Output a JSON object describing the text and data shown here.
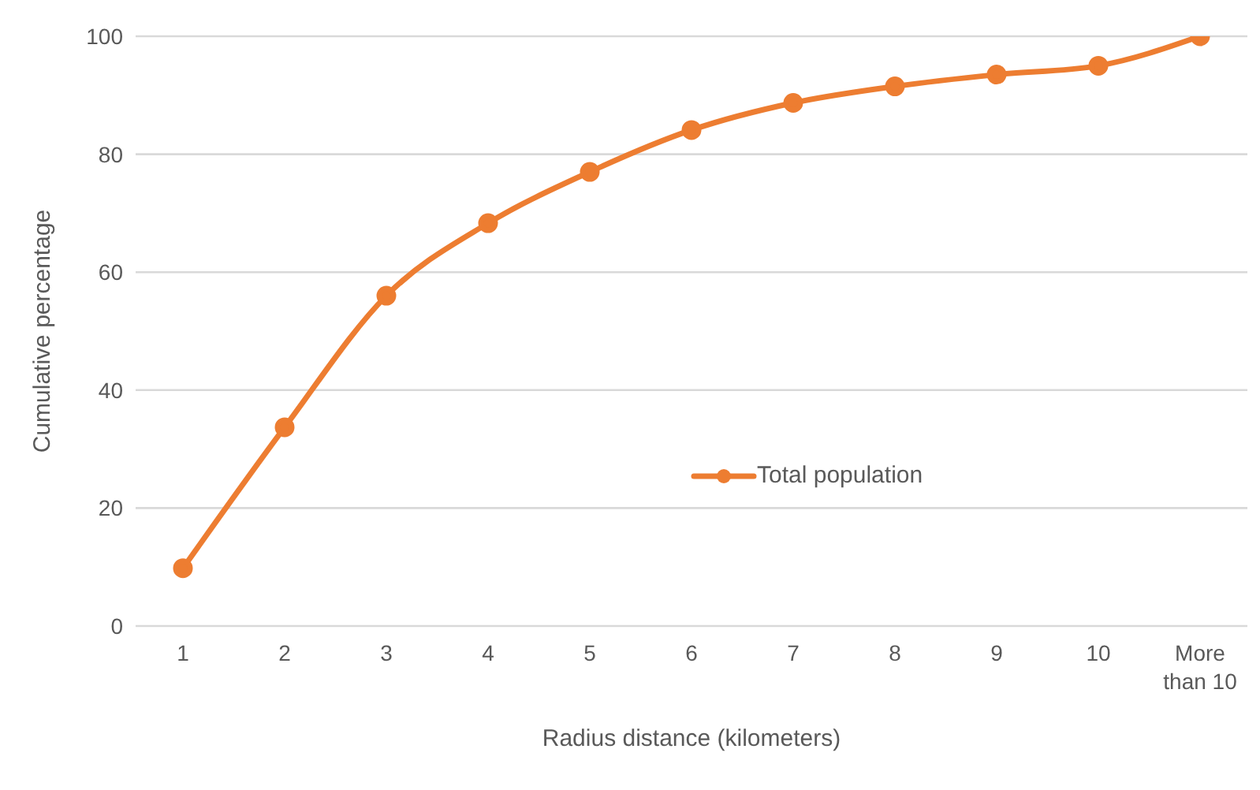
{
  "chart_data": {
    "type": "line",
    "xlabel": "Radius distance (kilometers)",
    "ylabel": "Cumulative percentage",
    "categories": [
      "1",
      "2",
      "3",
      "4",
      "5",
      "6",
      "7",
      "8",
      "9",
      "10",
      "More than 10"
    ],
    "series": [
      {
        "name": "Total population",
        "color": "#ed7d31",
        "values": [
          9.8,
          33.7,
          56.0,
          68.3,
          77.0,
          84.1,
          88.7,
          91.5,
          93.5,
          95.0,
          100
        ]
      }
    ],
    "ylim": [
      0,
      100
    ],
    "yticks": [
      0,
      20,
      40,
      60,
      80,
      100
    ],
    "grid": "y",
    "legend": "center",
    "marker": "circle",
    "line_style": "solid"
  }
}
